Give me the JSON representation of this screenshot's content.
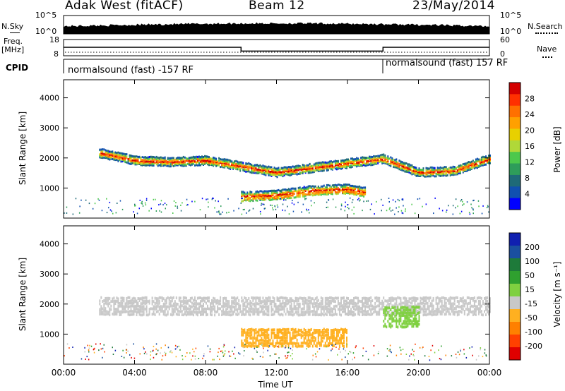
{
  "header": {
    "station": "Adak West (fitACF)",
    "beam": "Beam 12",
    "date": "23/May/2014"
  },
  "top_panels": {
    "nsky_label": "N.Sky",
    "nsearch_label": "N.Search",
    "nsky_ticks": [
      "10^5",
      "10^0"
    ],
    "nsky_right_ticks": [
      "10^5",
      "10^0"
    ],
    "freq_label_1": "Freq.",
    "freq_label_2": "[MHz]",
    "freq_ticks": [
      "18",
      "8"
    ],
    "nave_label": "Nave",
    "nave_ticks": [
      "60",
      "0"
    ],
    "cpid_label": "CPID",
    "cpid_left": "normalsound (fast) -157 RF",
    "cpid_right": "normalsound (fast) 157 RF"
  },
  "power_panel": {
    "ylabel": "Slant Range [km]",
    "yticks": [
      "4000",
      "3000",
      "2000",
      "1000"
    ],
    "colorbar_label": "Power [dB]",
    "colorbar_ticks": [
      "28",
      "24",
      "20",
      "16",
      "12",
      "8",
      "4"
    ],
    "colors": [
      "#d40000",
      "#ff3000",
      "#ff7000",
      "#ffa000",
      "#e8d000",
      "#b0d838",
      "#4cc84c",
      "#2e9d5a",
      "#1e6a78",
      "#1050b0",
      "#0000ff"
    ]
  },
  "velocity_panel": {
    "ylabel": "Slant Range [km]",
    "yticks": [
      "4000",
      "3000",
      "2000",
      "1000"
    ],
    "colorbar_label": "Velocity [m s⁻¹]",
    "colorbar_ticks": [
      "200",
      "100",
      "50",
      "15",
      "-15",
      "-50",
      "-100",
      "-200"
    ],
    "colors": [
      "#1020b0",
      "#1a4fa0",
      "#1e7a3a",
      "#2fa02f",
      "#7fd040",
      "#c8c8c8",
      "#ffb020",
      "#ff8000",
      "#ff4000",
      "#e00000"
    ]
  },
  "xaxis": {
    "ticks": [
      "00:00",
      "04:00",
      "08:00",
      "12:00",
      "16:00",
      "20:00",
      "00:00"
    ],
    "label": "Time UT"
  },
  "chart_data": {
    "type": "heatmap",
    "title": "Adak West (fitACF) Beam 12 23/May/2014",
    "x_units": "hours UT",
    "xlim": [
      0,
      24
    ],
    "ylim": [
      0,
      4600
    ],
    "frequency_series": [
      {
        "x0": 0,
        "x1": 10,
        "value": 13
      },
      {
        "x0": 10,
        "x1": 18,
        "value": 10
      },
      {
        "x0": 18,
        "x1": 24,
        "value": 13
      }
    ],
    "power_scatter_bands": [
      {
        "name": "upper",
        "x": [
          2,
          4,
          6,
          8,
          10,
          12,
          14,
          16,
          18,
          20,
          22,
          24
        ],
        "range_km": [
          2200,
          1950,
          1900,
          1950,
          1750,
          1550,
          1700,
          1850,
          2000,
          1550,
          1600,
          2000
        ]
      },
      {
        "name": "lower",
        "x": [
          10,
          12,
          14,
          16,
          17
        ],
        "range_km": [
          750,
          800,
          950,
          1000,
          900
        ]
      }
    ],
    "velocity_classes": [
      {
        "x0": 10,
        "x1": 16,
        "range_km": [
          650,
          1200
        ],
        "velocity": -30
      },
      {
        "x0": 2,
        "x1": 24,
        "range_km": [
          1700,
          2300
        ],
        "velocity": 0
      },
      {
        "x0": 18,
        "x1": 20,
        "range_km": [
          1300,
          2000
        ],
        "velocity": 30
      }
    ]
  }
}
